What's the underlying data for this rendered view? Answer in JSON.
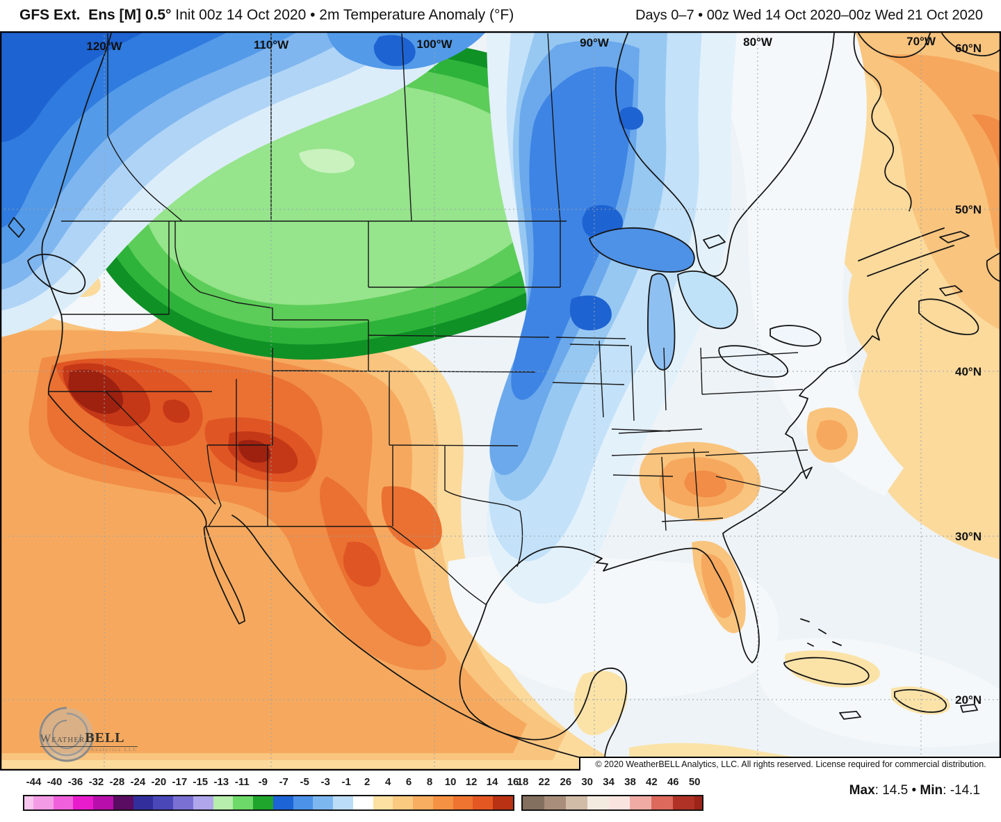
{
  "header": {
    "title_model": "GFS Ext.  Ens [M] 0.5°",
    "title_rest": " Init 00z 14 Oct 2020 • 2m Temperature Anomaly (°F)",
    "valid_range": "Days 0–7 • 00z Wed 14 Oct 2020–00z Wed 21 Oct 2020"
  },
  "map": {
    "lon_labels": [
      "120°W",
      "110°W",
      "100°W",
      "90°W",
      "80°W",
      "70°W"
    ],
    "lat_labels": [
      "60°N",
      "50°N",
      "40°N",
      "30°N",
      "20°N"
    ],
    "copyright": "© 2020 WeatherBELL Analytics, LLC. All rights reserved. License required for commercial distribution."
  },
  "logo": {
    "word1": "Weather",
    "word2": "BELL",
    "sub": "Analytics LLC"
  },
  "colorbar": {
    "main_ticks": [
      "-44",
      "-40",
      "-36",
      "-32",
      "-28",
      "-24",
      "-20",
      "-17",
      "-15",
      "-13",
      "-11",
      "-9",
      "-7",
      "-5",
      "-3",
      "-1",
      "2",
      "4",
      "6",
      "8",
      "10",
      "12",
      "14",
      "16"
    ],
    "ext_ticks": [
      "18",
      "22",
      "26",
      "30",
      "34",
      "38",
      "42",
      "46",
      "50"
    ],
    "main_colors": [
      "#F8C6EF",
      "#F49BE5",
      "#F160DC",
      "#E91CCD",
      "#B80FAC",
      "#5A0B62",
      "#322F9D",
      "#4A47B8",
      "#7A70D4",
      "#AFA6EC",
      "#B7EDAD",
      "#6CD968",
      "#1FA42C",
      "#1D64D6",
      "#4B92E8",
      "#7DB7F0",
      "#BBDDF8",
      "#FFFFFF",
      "#FCE1A2",
      "#FACA80",
      "#F8AE60",
      "#F49143",
      "#EE7430",
      "#E45722",
      "#B93213"
    ],
    "ext_colors": [
      "#84705F",
      "#A98F7B",
      "#D1BCA8",
      "#F3EAE0",
      "#FAE4E0",
      "#F0ACA4",
      "#DC695C",
      "#B03226",
      "#9C2418"
    ]
  },
  "stats": {
    "max_label": "Max",
    "max_value": "14.5",
    "separator": "•",
    "min_label": "Min",
    "min_value": "-14.1"
  }
}
